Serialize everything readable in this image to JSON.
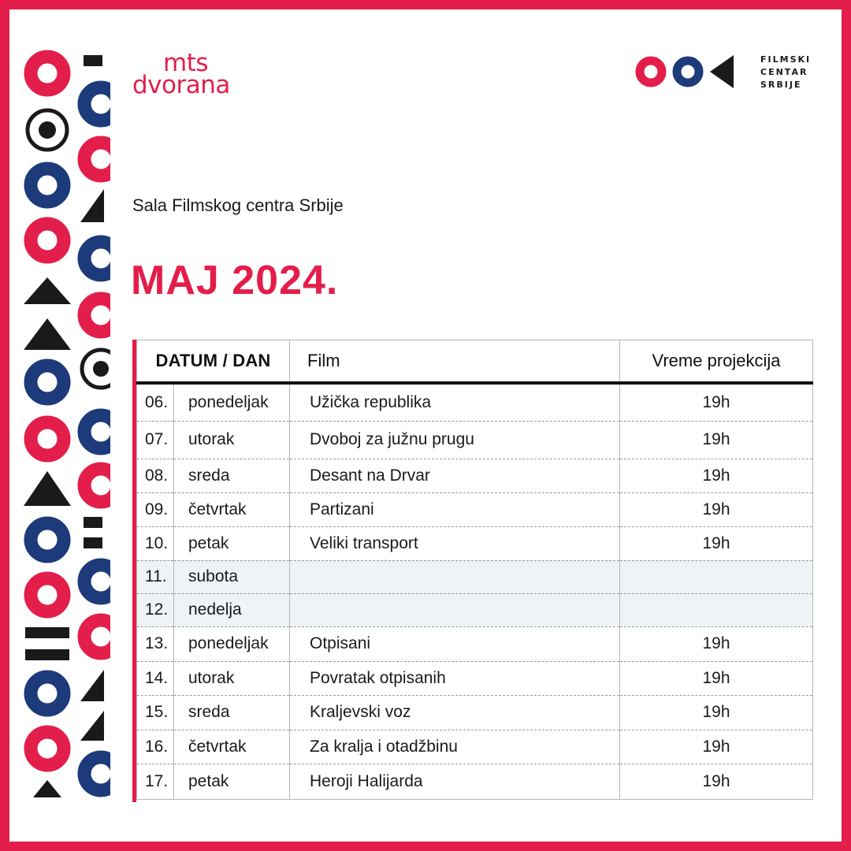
{
  "colors": {
    "accent": "#e31e4a",
    "navy": "#1d3a7a",
    "dark": "#1a1a1a",
    "weekend_row": "#eef3f6"
  },
  "logo_mts": {
    "line1": "mts",
    "line2": "dvorana"
  },
  "logo_fcs": {
    "line1": "FILMSKI",
    "line2": "CENTAR",
    "line3": "SRBIJE"
  },
  "venue": "Sala Filmskog centra Srbije",
  "month": "MAJ 2024.",
  "table": {
    "headers": {
      "date_day": "DATUM / DAN",
      "film": "Film",
      "time": "Vreme projekcija"
    },
    "rows": [
      {
        "num": "06.",
        "day": "ponedeljak",
        "film": "Užička republika",
        "time": "19h"
      },
      {
        "num": "07.",
        "day": "utorak",
        "film": "Dvoboj za južnu prugu",
        "time": "19h"
      },
      {
        "num": "08.",
        "day": "sreda",
        "film": "Desant na Drvar",
        "time": "19h"
      },
      {
        "num": "09.",
        "day": "četvrtak",
        "film": "Partizani",
        "time": "19h"
      },
      {
        "num": "10.",
        "day": "petak",
        "film": "Veliki transport",
        "time": "19h"
      },
      {
        "num": "11.",
        "day": "subota",
        "film": "",
        "time": "",
        "weekend": true
      },
      {
        "num": "12.",
        "day": "nedelja",
        "film": "",
        "time": "",
        "weekend": true
      },
      {
        "num": "13.",
        "day": "ponedeljak",
        "film": "Otpisani",
        "time": "19h"
      },
      {
        "num": "14.",
        "day": "utorak",
        "film": "Povratak otpisanih",
        "time": "19h"
      },
      {
        "num": "15.",
        "day": "sreda",
        "film": "Kraljevski voz",
        "time": "19h"
      },
      {
        "num": "16.",
        "day": "četvrtak",
        "film": "Za kralja i otadžbinu",
        "time": "19h"
      },
      {
        "num": "17.",
        "day": "petak",
        "film": "Heroji Halijarda",
        "time": "19h"
      }
    ]
  }
}
